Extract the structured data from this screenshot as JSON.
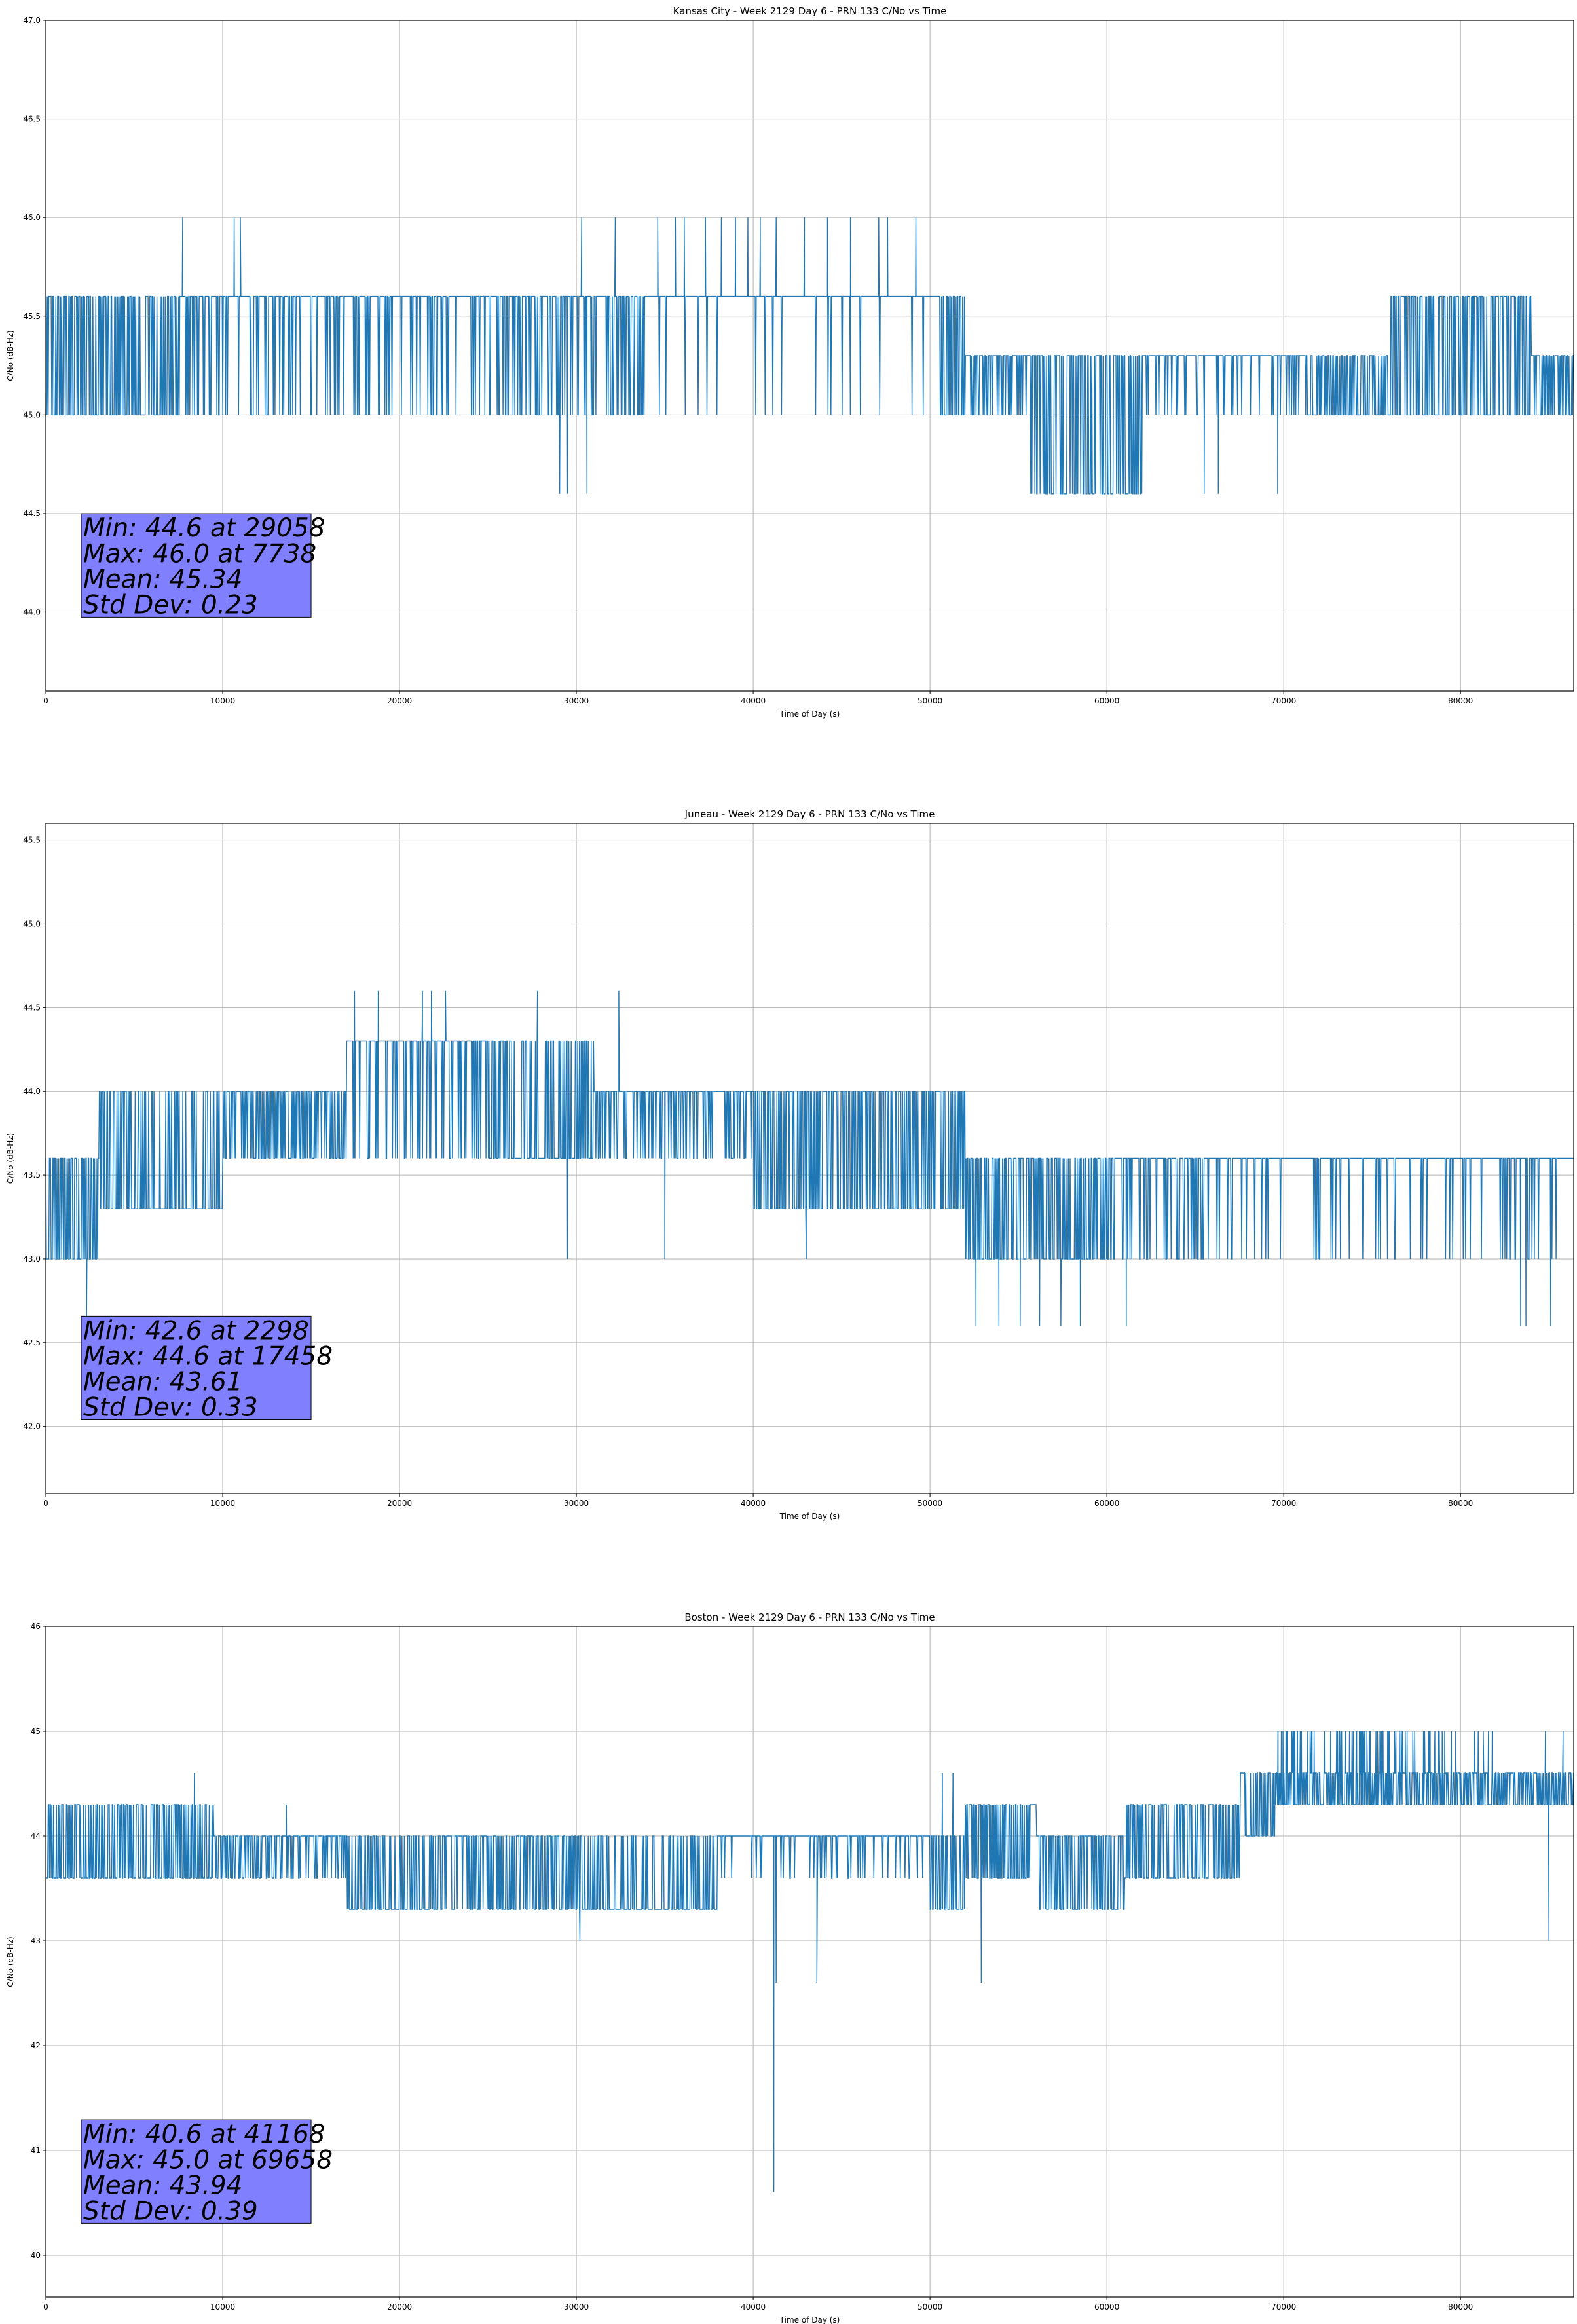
{
  "colors": {
    "series": "#1f77b4",
    "grid": "#b0b0b0",
    "stats_box_fill": "#8080ff",
    "stats_box_stroke": "#000000"
  },
  "chart_data": [
    {
      "type": "line",
      "title": "Kansas City - Week 2129 Day 6 - PRN 133 C/No vs Time",
      "xlabel": "Time of Day (s)",
      "ylabel": "C/No (dB-Hz)",
      "xlim": [
        0,
        86400
      ],
      "ylim": [
        43.6,
        47.0
      ],
      "xticks": [
        0,
        10000,
        20000,
        30000,
        40000,
        50000,
        60000,
        70000,
        80000
      ],
      "yticks": [
        44.0,
        44.5,
        45.0,
        45.5,
        46.0,
        46.5,
        47.0
      ],
      "ytick_decimals": 1,
      "grid": true,
      "stats": {
        "min_line": "Min: 44.6 at 29058",
        "max_line": "Max: 46.0 at 7738",
        "mean_line": "Mean: 45.34",
        "std_line": "Std Dev: 0.23"
      },
      "levels": [
        44.6,
        45.0,
        45.3,
        45.6,
        46.0
      ],
      "profile": [
        {
          "t": 0,
          "base": 45.3,
          "lo": 45.0,
          "hi": 45.6,
          "p_hi": 0.5
        },
        {
          "t": 8000,
          "base": 45.3,
          "lo": 45.0,
          "hi": 45.6,
          "p_hi": 0.82
        },
        {
          "t": 16000,
          "base": 45.3,
          "lo": 45.0,
          "hi": 45.6,
          "p_hi": 0.85
        },
        {
          "t": 25000,
          "base": 45.3,
          "lo": 45.0,
          "hi": 45.6,
          "p_hi": 0.72
        },
        {
          "t": 34000,
          "base": 45.3,
          "lo": 45.0,
          "hi": 45.6,
          "p_hi": 0.93
        },
        {
          "t": 43000,
          "base": 45.3,
          "lo": 45.0,
          "hi": 45.6,
          "p_hi": 0.96
        },
        {
          "t": 50500,
          "base": 45.3,
          "lo": 45.0,
          "hi": 45.6,
          "p_hi": 0.5
        },
        {
          "t": 52000,
          "base": 45.0,
          "lo": 45.0,
          "hi": 45.3,
          "p_hi": 0.75
        },
        {
          "t": 55500,
          "base": 45.0,
          "lo": 44.6,
          "hi": 45.3,
          "p_hi": 0.5
        },
        {
          "t": 62000,
          "base": 45.0,
          "lo": 45.0,
          "hi": 45.3,
          "p_hi": 0.85
        },
        {
          "t": 71000,
          "base": 45.0,
          "lo": 45.0,
          "hi": 45.3,
          "p_hi": 0.45
        },
        {
          "t": 76000,
          "base": 45.3,
          "lo": 45.0,
          "hi": 45.6,
          "p_hi": 0.55
        },
        {
          "t": 84000,
          "base": 45.0,
          "lo": 45.0,
          "hi": 45.3,
          "p_hi": 0.6
        }
      ],
      "spikes": [
        {
          "t": 7738,
          "y": 46.0
        },
        {
          "t": 10650,
          "y": 46.0
        },
        {
          "t": 11000,
          "y": 46.0
        },
        {
          "t": 30300,
          "y": 46.0
        },
        {
          "t": 32200,
          "y": 46.0
        },
        {
          "t": 34600,
          "y": 46.0
        },
        {
          "t": 35600,
          "y": 46.0
        },
        {
          "t": 36100,
          "y": 46.0
        },
        {
          "t": 37300,
          "y": 46.0
        },
        {
          "t": 38200,
          "y": 46.0
        },
        {
          "t": 39000,
          "y": 46.0
        },
        {
          "t": 39700,
          "y": 46.0
        },
        {
          "t": 40400,
          "y": 46.0
        },
        {
          "t": 41300,
          "y": 46.0
        },
        {
          "t": 42900,
          "y": 46.0
        },
        {
          "t": 44200,
          "y": 46.0
        },
        {
          "t": 45500,
          "y": 46.0
        },
        {
          "t": 47100,
          "y": 46.0
        },
        {
          "t": 47600,
          "y": 46.0
        },
        {
          "t": 49200,
          "y": 46.0
        },
        {
          "t": 29058,
          "y": 44.6
        },
        {
          "t": 29500,
          "y": 44.6
        },
        {
          "t": 30600,
          "y": 44.6
        },
        {
          "t": 65500,
          "y": 44.6
        },
        {
          "t": 66300,
          "y": 44.6
        },
        {
          "t": 69658,
          "y": 44.6
        }
      ]
    },
    {
      "type": "line",
      "title": "Juneau - Week 2129 Day 6 - PRN 133 C/No vs Time",
      "xlabel": "Time of Day (s)",
      "ylabel": "C/No (dB-Hz)",
      "xlim": [
        0,
        86400
      ],
      "ylim": [
        41.6,
        45.6
      ],
      "xticks": [
        0,
        10000,
        20000,
        30000,
        40000,
        50000,
        60000,
        70000,
        80000
      ],
      "yticks": [
        42.0,
        42.5,
        43.0,
        43.5,
        44.0,
        44.5,
        45.0,
        45.5
      ],
      "ytick_decimals": 1,
      "grid": true,
      "stats": {
        "min_line": "Min: 42.6 at 2298",
        "max_line": "Max: 44.6 at 17458",
        "mean_line": "Mean: 43.61",
        "std_line": "Std Dev: 0.33"
      },
      "levels": [
        42.6,
        43.0,
        43.3,
        43.6,
        44.0,
        44.3,
        44.6
      ],
      "profile": [
        {
          "t": 0,
          "base": 43.3,
          "lo": 43.0,
          "hi": 43.6,
          "p_hi": 0.5
        },
        {
          "t": 3000,
          "base": 43.6,
          "lo": 43.3,
          "hi": 44.0,
          "p_hi": 0.35
        },
        {
          "t": 10000,
          "base": 43.6,
          "lo": 43.6,
          "hi": 44.0,
          "p_hi": 0.55
        },
        {
          "t": 17000,
          "base": 44.0,
          "lo": 43.6,
          "hi": 44.3,
          "p_hi": 0.8
        },
        {
          "t": 25000,
          "base": 44.0,
          "lo": 43.6,
          "hi": 44.3,
          "p_hi": 0.35
        },
        {
          "t": 31000,
          "base": 43.6,
          "lo": 43.6,
          "hi": 44.0,
          "p_hi": 0.75
        },
        {
          "t": 40000,
          "base": 43.6,
          "lo": 43.3,
          "hi": 44.0,
          "p_hi": 0.55
        },
        {
          "t": 52000,
          "base": 43.3,
          "lo": 43.0,
          "hi": 43.6,
          "p_hi": 0.5
        },
        {
          "t": 60000,
          "base": 43.3,
          "lo": 43.0,
          "hi": 43.6,
          "p_hi": 0.8
        },
        {
          "t": 66000,
          "base": 43.3,
          "lo": 43.0,
          "hi": 43.6,
          "p_hi": 0.9
        }
      ],
      "spikes": [
        {
          "t": 2298,
          "y": 42.6
        },
        {
          "t": 52600,
          "y": 42.6
        },
        {
          "t": 53900,
          "y": 42.6
        },
        {
          "t": 55100,
          "y": 42.6
        },
        {
          "t": 56200,
          "y": 42.6
        },
        {
          "t": 57400,
          "y": 42.6
        },
        {
          "t": 58500,
          "y": 42.6
        },
        {
          "t": 61100,
          "y": 42.6
        },
        {
          "t": 83400,
          "y": 42.6
        },
        {
          "t": 83700,
          "y": 42.6
        },
        {
          "t": 85100,
          "y": 42.6
        },
        {
          "t": 17458,
          "y": 44.6
        },
        {
          "t": 18800,
          "y": 44.6
        },
        {
          "t": 21300,
          "y": 44.6
        },
        {
          "t": 21800,
          "y": 44.6
        },
        {
          "t": 22600,
          "y": 44.6
        },
        {
          "t": 27800,
          "y": 44.6
        },
        {
          "t": 32400,
          "y": 44.6
        },
        {
          "t": 29500,
          "y": 43.0
        },
        {
          "t": 35000,
          "y": 43.0
        },
        {
          "t": 43000,
          "y": 43.0
        }
      ]
    },
    {
      "type": "line",
      "title": "Boston - Week 2129 Day 6 - PRN 133 C/No vs Time",
      "xlabel": "Time of Day (s)",
      "ylabel": "C/No (dB-Hz)",
      "xlim": [
        0,
        86400
      ],
      "ylim": [
        39.6,
        46.0
      ],
      "xticks": [
        0,
        10000,
        20000,
        30000,
        40000,
        50000,
        60000,
        70000,
        80000
      ],
      "yticks": [
        40,
        41,
        42,
        43,
        44,
        45,
        46
      ],
      "ytick_decimals": 0,
      "grid": true,
      "stats": {
        "min_line": "Min: 40.6 at 41168",
        "max_line": "Max: 45.0 at 69658",
        "mean_line": "Mean: 43.94",
        "std_line": "Std Dev: 0.39"
      },
      "levels": [
        40.6,
        42.6,
        43.0,
        43.3,
        43.6,
        44.0,
        44.3,
        44.6,
        45.0
      ],
      "profile": [
        {
          "t": 0,
          "base": 44.0,
          "lo": 43.6,
          "hi": 44.3,
          "p_hi": 0.4
        },
        {
          "t": 9500,
          "base": 43.6,
          "lo": 43.6,
          "hi": 44.0,
          "p_hi": 0.7
        },
        {
          "t": 17000,
          "base": 43.6,
          "lo": 43.3,
          "hi": 44.0,
          "p_hi": 0.35
        },
        {
          "t": 22000,
          "base": 43.6,
          "lo": 43.3,
          "hi": 44.0,
          "p_hi": 0.6
        },
        {
          "t": 30000,
          "base": 43.6,
          "lo": 43.3,
          "hi": 44.0,
          "p_hi": 0.3
        },
        {
          "t": 38000,
          "base": 43.6,
          "lo": 43.6,
          "hi": 44.0,
          "p_hi": 0.85
        },
        {
          "t": 50000,
          "base": 43.6,
          "lo": 43.3,
          "hi": 44.0,
          "p_hi": 0.4
        },
        {
          "t": 52000,
          "base": 44.0,
          "lo": 43.6,
          "hi": 44.3,
          "p_hi": 0.5
        },
        {
          "t": 56000,
          "base": 43.6,
          "lo": 43.3,
          "hi": 44.0,
          "p_hi": 0.5
        },
        {
          "t": 61000,
          "base": 44.0,
          "lo": 43.6,
          "hi": 44.3,
          "p_hi": 0.45
        },
        {
          "t": 67500,
          "base": 44.3,
          "lo": 44.0,
          "hi": 44.6,
          "p_hi": 0.5
        },
        {
          "t": 69500,
          "base": 44.3,
          "lo": 44.3,
          "hi": 44.6,
          "p_hi": 0.5
        },
        {
          "t": 77000,
          "base": 44.3,
          "lo": 44.3,
          "hi": 44.6,
          "p_hi": 0.5
        }
      ],
      "spikes": [
        {
          "t": 41168,
          "y": 40.6
        },
        {
          "t": 41300,
          "y": 42.6
        },
        {
          "t": 43600,
          "y": 42.6
        },
        {
          "t": 52900,
          "y": 42.6
        },
        {
          "t": 30200,
          "y": 43.0
        },
        {
          "t": 85000,
          "y": 43.0
        },
        {
          "t": 8400,
          "y": 44.6
        },
        {
          "t": 13600,
          "y": 44.3
        },
        {
          "t": 50700,
          "y": 44.6
        },
        {
          "t": 51300,
          "y": 44.6
        },
        {
          "t": 84800,
          "y": 45.0
        },
        {
          "t": 85800,
          "y": 45.0
        }
      ],
      "bursts": [
        {
          "t0": 69658,
          "t1": 77000,
          "y": 45.0,
          "count": 70
        },
        {
          "t0": 77000,
          "t1": 82500,
          "y": 45.0,
          "count": 22
        }
      ]
    }
  ]
}
